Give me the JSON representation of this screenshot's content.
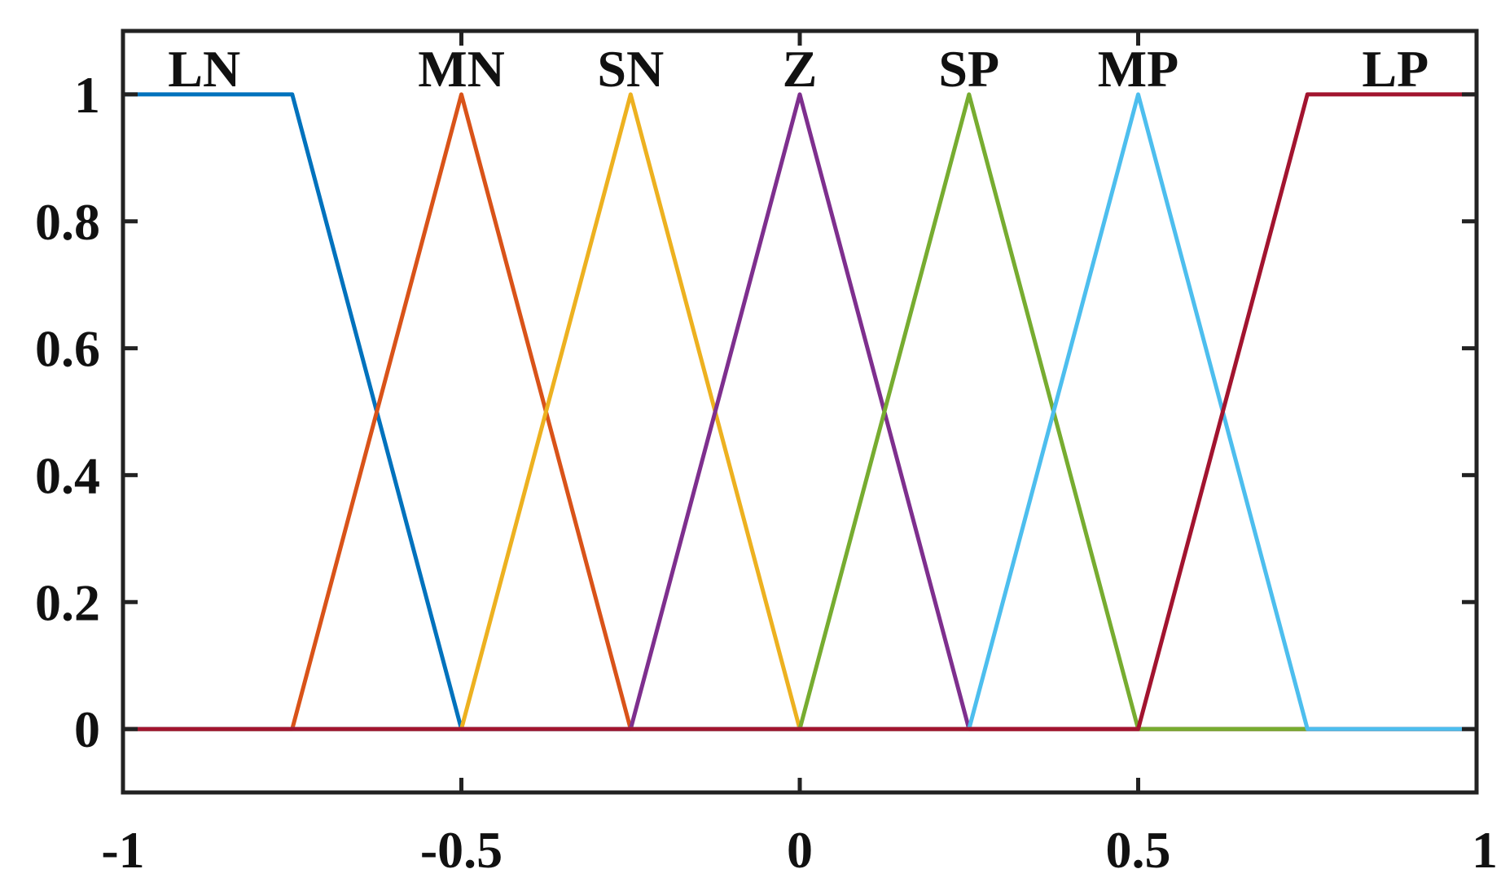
{
  "chart_data": {
    "type": "line",
    "title": "",
    "xlabel": "",
    "ylabel": "",
    "xlim": [
      -1,
      1
    ],
    "ylim": [
      -0.1,
      1.1
    ],
    "grid": false,
    "legend": "none",
    "xticks": [
      -1,
      -0.5,
      0,
      0.5,
      1
    ],
    "xtick_labels": [
      "-1",
      "-0.5",
      "0",
      "0.5",
      "1"
    ],
    "yticks": [
      0,
      0.2,
      0.4,
      0.6,
      0.8,
      1
    ],
    "ytick_labels": [
      "0",
      "0.2",
      "0.4",
      "0.6",
      "0.8",
      "1"
    ],
    "series": [
      {
        "name": "LN",
        "color": "#0072BD",
        "points": [
          [
            -1,
            1
          ],
          [
            -0.75,
            1
          ],
          [
            -0.5,
            0
          ],
          [
            1,
            0
          ]
        ],
        "label_at": [
          -0.88,
          1
        ]
      },
      {
        "name": "MN",
        "color": "#D95319",
        "points": [
          [
            -1,
            0
          ],
          [
            -0.75,
            0
          ],
          [
            -0.5,
            1
          ],
          [
            -0.25,
            0
          ],
          [
            1,
            0
          ]
        ],
        "label_at": [
          -0.5,
          1
        ]
      },
      {
        "name": "SN",
        "color": "#EDB120",
        "points": [
          [
            -1,
            0
          ],
          [
            -0.5,
            0
          ],
          [
            -0.25,
            1
          ],
          [
            0,
            0
          ],
          [
            1,
            0
          ]
        ],
        "label_at": [
          -0.25,
          1
        ]
      },
      {
        "name": "Z",
        "color": "#7E2F8E",
        "points": [
          [
            -1,
            0
          ],
          [
            -0.25,
            0
          ],
          [
            0,
            1
          ],
          [
            0.25,
            0
          ],
          [
            1,
            0
          ]
        ],
        "label_at": [
          0,
          1
        ]
      },
      {
        "name": "SP",
        "color": "#77AC30",
        "points": [
          [
            -1,
            0
          ],
          [
            0,
            0
          ],
          [
            0.25,
            1
          ],
          [
            0.5,
            0
          ],
          [
            0.75,
            0
          ]
        ],
        "label_at": [
          0.25,
          1
        ]
      },
      {
        "name": "MP",
        "color": "#4DBEEE",
        "points": [
          [
            -1,
            0
          ],
          [
            0.25,
            0
          ],
          [
            0.5,
            1
          ],
          [
            0.75,
            0
          ],
          [
            1,
            0
          ]
        ],
        "label_at": [
          0.5,
          1
        ]
      },
      {
        "name": "LP",
        "color": "#A2142F",
        "points": [
          [
            -1,
            0
          ],
          [
            0.5,
            0
          ],
          [
            0.75,
            1
          ],
          [
            1,
            1
          ]
        ],
        "label_at": [
          0.88,
          1
        ]
      }
    ]
  }
}
